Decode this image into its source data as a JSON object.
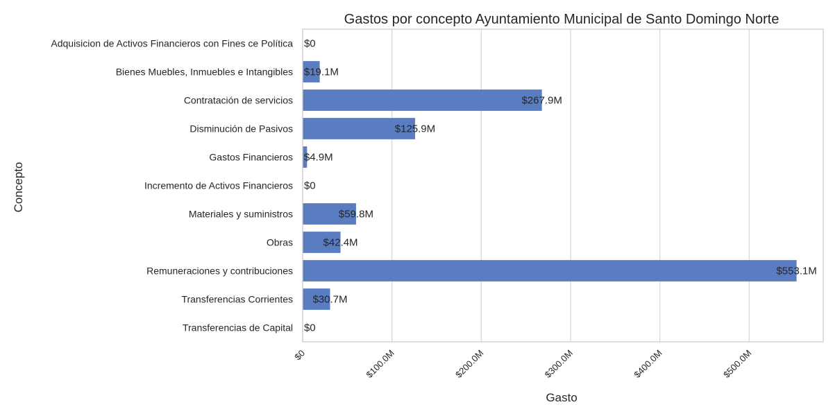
{
  "chart_data": {
    "type": "bar",
    "orientation": "horizontal",
    "title": "Gastos por concepto Ayuntamiento Municipal de Santo Domingo Norte",
    "xlabel": "Gasto",
    "ylabel": "Concepto",
    "categories": [
      "Adquisicion de Activos Financieros con Fines ce Política",
      "Bienes Muebles, Inmuebles e Intangibles",
      "Contratación de servicios",
      "Disminución de Pasivos",
      "Gastos Financieros",
      "Incremento de Activos Financieros",
      "Materiales y suministros",
      "Obras",
      "Remuneraciones y contribuciones",
      "Transferencias Corrientes",
      "Transferencias de Capital"
    ],
    "values": [
      0,
      19.1,
      267.9,
      125.9,
      4.9,
      0,
      59.8,
      42.4,
      553.1,
      30.7,
      0
    ],
    "value_unit": "millions",
    "data_labels": [
      "$0",
      "$19.1M",
      "$267.9M",
      "$125.9M",
      "$4.9M",
      "$0",
      "$59.8M",
      "$42.4M",
      "$553.1M",
      "$30.7M",
      "$0"
    ],
    "xticks": [
      0,
      100,
      200,
      300,
      400,
      500
    ],
    "xtick_labels": [
      "$0",
      "$100.0M",
      "$200.0M",
      "$300.0M",
      "$400.0M",
      "$500.0M"
    ],
    "xlim": [
      0,
      583
    ],
    "grid": "vertical",
    "bar_color": "#5a7dc1",
    "grid_color": "#d5d5d5",
    "spine_color": "#cccccc"
  }
}
